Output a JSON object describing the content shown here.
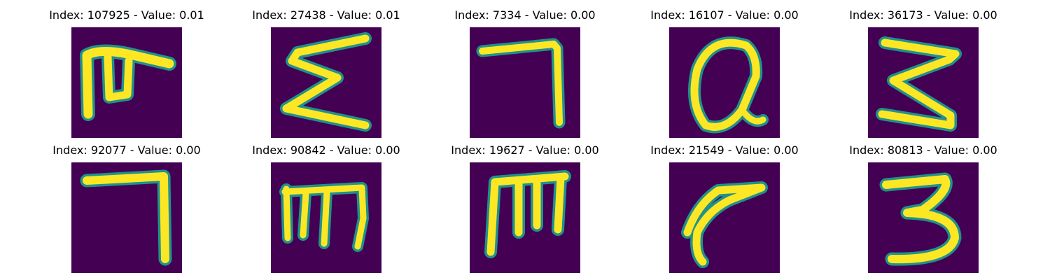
{
  "colors": {
    "background": "#440154",
    "stroke": "#fde725",
    "edge": "#21918c"
  },
  "panels": [
    {
      "title": "Index: 107925 - Value: 0.01",
      "glyph": "glyph-sigma-hook-icon"
    },
    {
      "title": "Index: 27438 - Value: 0.01",
      "glyph": "glyph-sigma-icon"
    },
    {
      "title": "Index: 7334 - Value: 0.00",
      "glyph": "glyph-seven-icon"
    },
    {
      "title": "Index: 16107 - Value: 0.00",
      "glyph": "glyph-q-loop-icon"
    },
    {
      "title": "Index: 36173 - Value: 0.00",
      "glyph": "glyph-reversed-s-icon"
    },
    {
      "title": "Index: 92077 - Value: 0.00",
      "glyph": "glyph-seven-icon"
    },
    {
      "title": "Index: 90842 - Value: 0.00",
      "glyph": "glyph-m-icon"
    },
    {
      "title": "Index: 19627 - Value: 0.00",
      "glyph": "glyph-m-icon"
    },
    {
      "title": "Index: 21549 - Value: 0.00",
      "glyph": "glyph-hook-icon"
    },
    {
      "title": "Index: 80813 - Value: 0.00",
      "glyph": "glyph-three-icon"
    }
  ]
}
